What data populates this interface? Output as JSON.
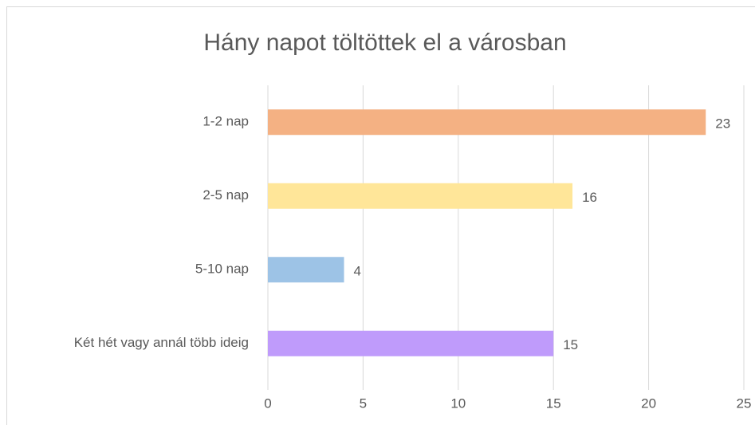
{
  "chart_data": {
    "type": "bar",
    "orientation": "horizontal",
    "title": "Hány napot töltöttek el a városban",
    "categories": [
      "1-2 nap",
      "2-5 nap",
      "5-10 nap",
      "Két hét vagy annál több ideig"
    ],
    "values": [
      23,
      16,
      4,
      15
    ],
    "colors": [
      "#f4b183",
      "#ffe699",
      "#9dc3e6",
      "#bf9bfb"
    ],
    "xlim": [
      0,
      25
    ],
    "xticks": [
      0,
      5,
      10,
      15,
      20,
      25
    ],
    "grid": true
  }
}
